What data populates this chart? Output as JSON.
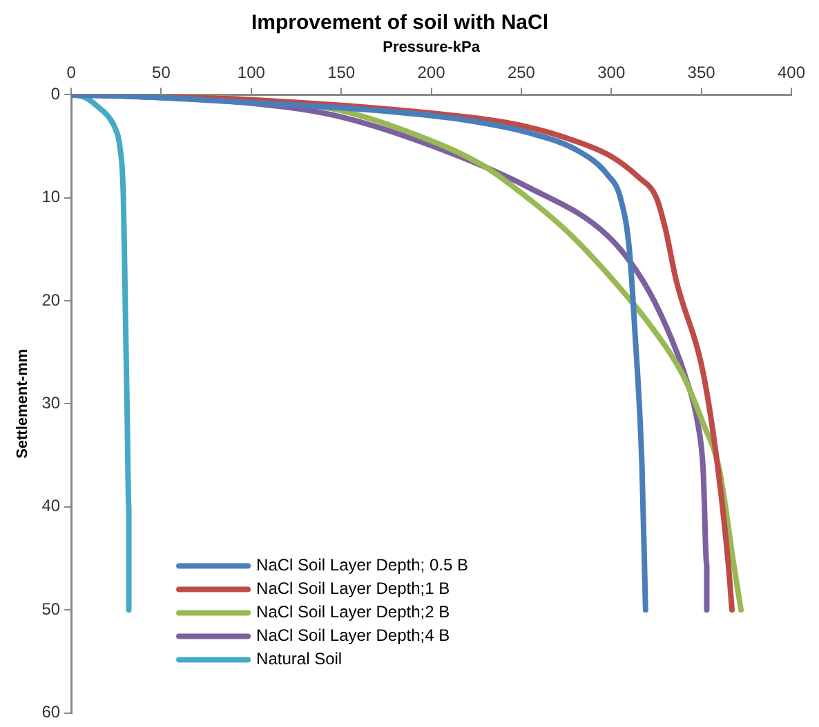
{
  "chart_data": {
    "type": "line",
    "title": "Improvement of soil with NaCl",
    "xlabel": "Pressure-kPa",
    "ylabel": "Settlement-mm",
    "xlim": [
      0,
      400
    ],
    "xticks": [
      0,
      50,
      100,
      150,
      200,
      250,
      300,
      350,
      400
    ],
    "ylim": [
      60,
      0
    ],
    "yticks": [
      0,
      10,
      20,
      30,
      40,
      50,
      60
    ],
    "grid": false,
    "legend": "bottom left",
    "marker": "none",
    "line_style": "solid",
    "series": [
      {
        "name": "NaCl Soil Layer Depth; 0.5 B",
        "color": "#4a7ebb",
        "x": [
          0,
          50,
          92,
          174,
          220,
          254,
          282,
          298,
          305,
          310,
          313,
          317,
          319
        ],
        "values": [
          0,
          0.3,
          0.7,
          1.6,
          2.5,
          3.7,
          5.5,
          7.8,
          10,
          15,
          22.7,
          36,
          50
        ]
      },
      {
        "name": "NaCl Soil Layer Depth;1 B",
        "color": "#be4b48",
        "x": [
          0,
          100,
          200,
          250,
          280,
          300,
          315,
          325,
          330,
          336,
          351,
          359,
          365,
          367
        ],
        "values": [
          0,
          0.5,
          1.8,
          3,
          4.5,
          6,
          8,
          10,
          13,
          18,
          27,
          36,
          45.6,
          50
        ]
      },
      {
        "name": "NaCl Soil Layer Depth;2 B",
        "color": "#98b954",
        "x": [
          0,
          92,
          146,
          187,
          228,
          246,
          275,
          302,
          323,
          340,
          351,
          360,
          368,
          372
        ],
        "values": [
          0,
          0.4,
          1.4,
          3.6,
          6.8,
          9,
          13.2,
          18.2,
          22.7,
          27.3,
          31.9,
          36.4,
          45.6,
          50
        ]
      },
      {
        "name": "NaCl Soil Layer Depth;4 B",
        "color": "#7d60a0",
        "x": [
          0,
          38,
          92,
          146,
          201,
          254,
          298,
          318,
          331,
          341,
          348,
          351,
          353,
          353
        ],
        "values": [
          0,
          0.2,
          0.7,
          2,
          5,
          9,
          13.7,
          18.2,
          22.7,
          27.3,
          31.9,
          36.4,
          45.6,
          50
        ]
      },
      {
        "name": "Natural Soil",
        "color": "#46aac5",
        "x": [
          0,
          8,
          15,
          21,
          25,
          27,
          29,
          30,
          31,
          32,
          32
        ],
        "values": [
          0,
          0.3,
          1.2,
          2.2,
          3.5,
          5,
          10,
          20,
          30,
          40,
          50
        ]
      }
    ]
  }
}
